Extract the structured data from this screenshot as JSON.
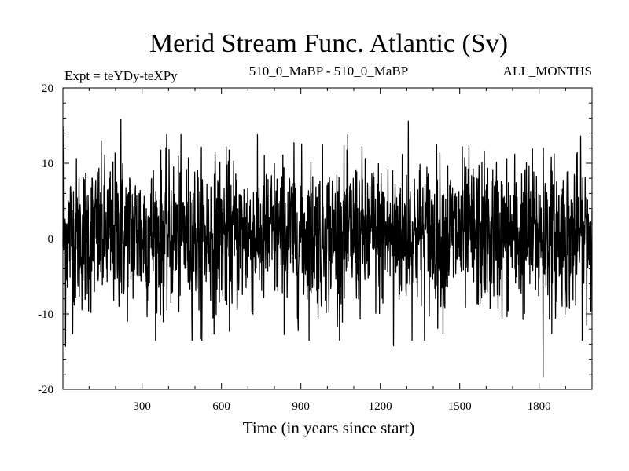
{
  "chart_data": {
    "type": "line",
    "title": "Merid Stream Func. Atlantic (Sv)",
    "subtitle_left": "Expt = teYDy-teXPy",
    "subtitle_center": "510_0_MaBP - 510_0_MaBP",
    "subtitle_right": "ALL_MONTHS",
    "xlabel": "Time (in years since start)",
    "ylabel": "",
    "xlim": [
      1,
      2000
    ],
    "ylim": [
      -20,
      20
    ],
    "x_ticks": [
      300,
      600,
      900,
      1200,
      1500,
      1800
    ],
    "x_tick_labels": [
      "300",
      "600",
      "900",
      "1200",
      "1500",
      "1800"
    ],
    "y_ticks": [
      -20,
      -10,
      0,
      10,
      20
    ],
    "y_tick_labels": [
      "-20",
      "-10",
      "0",
      "10",
      "20"
    ],
    "series": [
      {
        "name": "Merid Stream Func. Atlantic",
        "color": "#000000",
        "generator": "noisy_annual_series",
        "n_points": 2000,
        "mean": 0.5,
        "std": 5.0,
        "notable_extremes": [
          {
            "x": 5,
            "y": 14.8
          },
          {
            "x": 10,
            "y": -14.3
          },
          {
            "x": 220,
            "y": 15.8
          },
          {
            "x": 520,
            "y": -13.3
          },
          {
            "x": 1250,
            "y": -14.2
          },
          {
            "x": 1305,
            "y": 15.6
          },
          {
            "x": 1815,
            "y": -18.3
          },
          {
            "x": 1815,
            "y": 12.0
          }
        ]
      }
    ]
  }
}
